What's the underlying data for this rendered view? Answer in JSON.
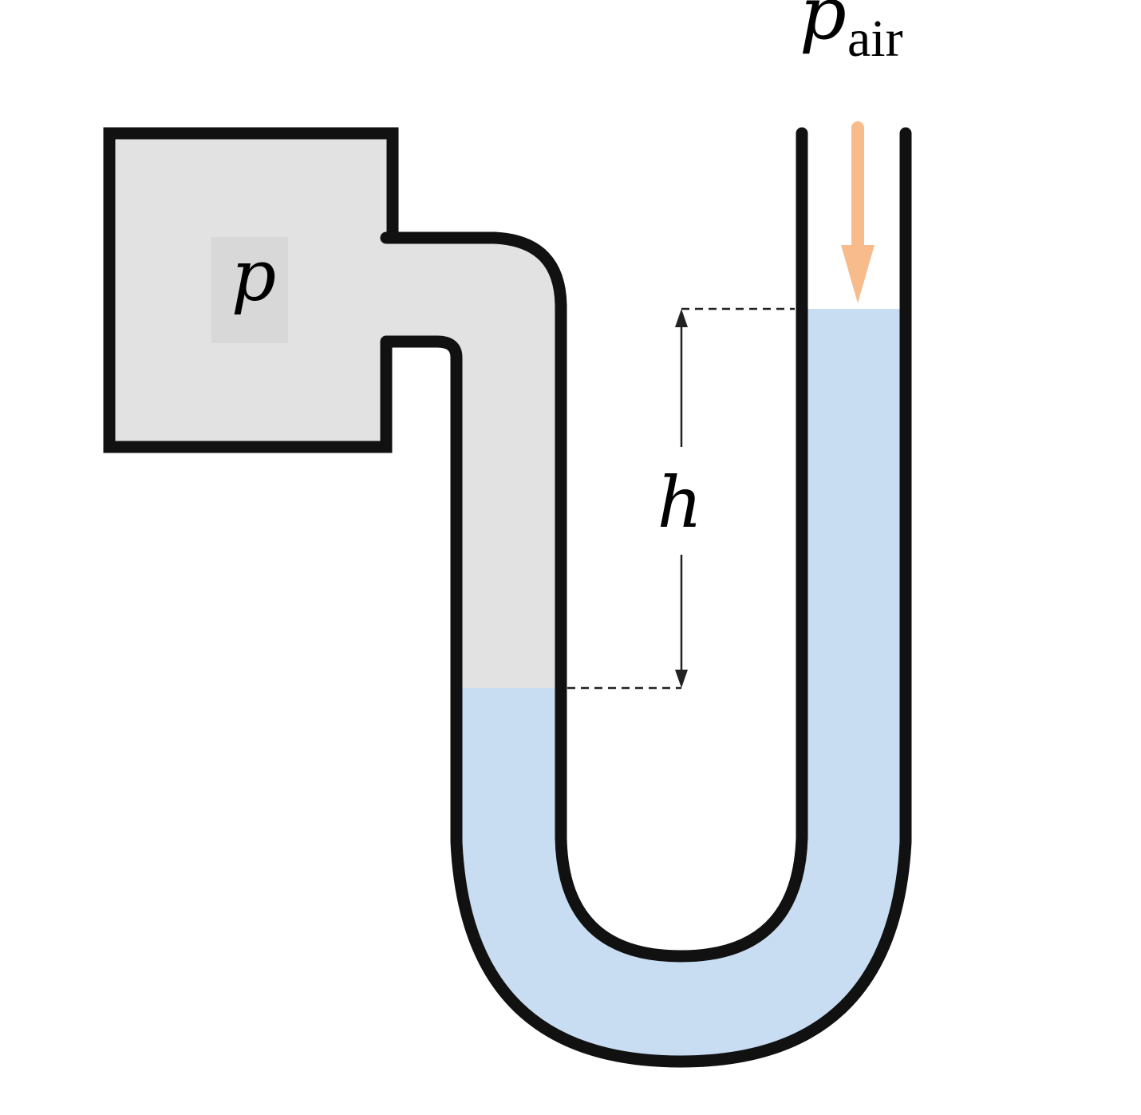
{
  "labels": {
    "vessel_pressure": "p",
    "air_pressure_symbol": "p",
    "air_pressure_subscript": "air",
    "height_difference": "h"
  },
  "colors": {
    "outline": "#111111",
    "gas_fill": "#e2e2e2",
    "label_box": "#d8d8d8",
    "liquid_fill": "#c8dcf2",
    "air_arrow": "#f8bc8c",
    "dimension_line": "#222222",
    "background": "#ffffff"
  }
}
